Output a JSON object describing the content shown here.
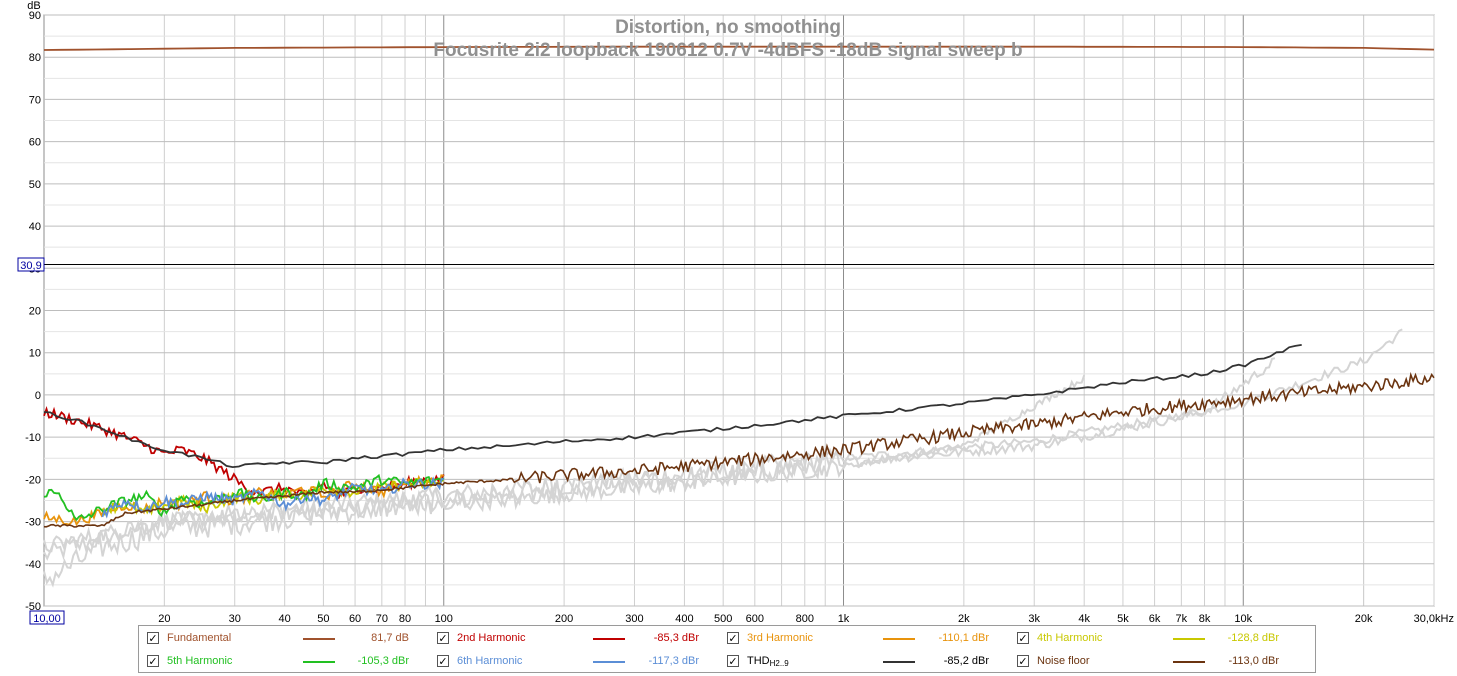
{
  "chart_data": {
    "type": "line",
    "title": "Distortion, no smoothing",
    "subtitle": "Focusrite 2i2 loopback 190612 0.7V -4dBFS -18dB signal sweep b",
    "ylabel": "dB",
    "xunit": "kHz",
    "xscale": "log",
    "xlim": [
      10,
      30000
    ],
    "ylim": [
      -50,
      90
    ],
    "grid": true,
    "cursor_value": "30,9",
    "cursor_y": 30.9,
    "x_start_label": "10,00",
    "y_ticks": [
      "90",
      "80",
      "70",
      "60",
      "50",
      "40",
      "30",
      "20",
      "10",
      "0",
      "-10",
      "-20",
      "-30",
      "-40",
      "-50"
    ],
    "y_tick_values": [
      90,
      80,
      70,
      60,
      50,
      40,
      30,
      20,
      10,
      0,
      -10,
      -20,
      -30,
      -40,
      -50
    ],
    "x_ticks": [
      {
        "v": 20,
        "label": "20"
      },
      {
        "v": 30,
        "label": "30"
      },
      {
        "v": 40,
        "label": "40"
      },
      {
        "v": 50,
        "label": "50"
      },
      {
        "v": 60,
        "label": "60"
      },
      {
        "v": 70,
        "label": "70"
      },
      {
        "v": 80,
        "label": "80"
      },
      {
        "v": 100,
        "label": "100"
      },
      {
        "v": 200,
        "label": "200"
      },
      {
        "v": 300,
        "label": "300"
      },
      {
        "v": 400,
        "label": "400"
      },
      {
        "v": 500,
        "label": "500"
      },
      {
        "v": 600,
        "label": "600"
      },
      {
        "v": 800,
        "label": "800"
      },
      {
        "v": 1000,
        "label": "1k"
      },
      {
        "v": 2000,
        "label": "2k"
      },
      {
        "v": 3000,
        "label": "3k"
      },
      {
        "v": 4000,
        "label": "4k"
      },
      {
        "v": 5000,
        "label": "5k"
      },
      {
        "v": 6000,
        "label": "6k"
      },
      {
        "v": 7000,
        "label": "7k"
      },
      {
        "v": 8000,
        "label": "8k"
      },
      {
        "v": 10000,
        "label": "10k"
      },
      {
        "v": 20000,
        "label": "20k"
      },
      {
        "v": 30000,
        "label": "30,0kHz"
      }
    ],
    "series": [
      {
        "name": "Fundamental",
        "color": "#a0522d",
        "x": [
          10,
          30,
          100,
          300,
          1000,
          3000,
          10000,
          20000,
          30000
        ],
        "y": [
          81.7,
          82.2,
          82.4,
          82.5,
          82.5,
          82.5,
          82.4,
          82.2,
          81.8
        ]
      },
      {
        "name": "2nd Harmonic",
        "color": "#c00000",
        "x": [
          10,
          12,
          14,
          16,
          18,
          20,
          22,
          25,
          28,
          30,
          32,
          35,
          40,
          45,
          50,
          55,
          60,
          70,
          80,
          90,
          100
        ],
        "y": [
          -4,
          -6,
          -8,
          -10,
          -12,
          -14,
          -13,
          -15,
          -18,
          -20,
          -22,
          -23,
          -22,
          -24,
          -21,
          -24,
          -22,
          -22,
          -21,
          -20,
          -20
        ]
      },
      {
        "name": "3rd Harmonic",
        "color": "#e8930c",
        "x": [
          10,
          12,
          14,
          16,
          18,
          20,
          22,
          25,
          30,
          35,
          40,
          45,
          50,
          60,
          70,
          80,
          100
        ],
        "y": [
          -29,
          -30,
          -28,
          -26,
          -27,
          -25,
          -26,
          -24,
          -25,
          -23,
          -24,
          -22,
          -24,
          -21,
          -23,
          -21,
          -20
        ]
      },
      {
        "name": "4th Harmonic",
        "color": "#c8c800",
        "x": [
          14,
          16,
          18,
          20,
          22,
          25,
          30,
          35,
          40,
          45,
          50,
          60,
          70,
          80,
          100
        ],
        "y": [
          -27,
          -26,
          -28,
          -26,
          -25,
          -27,
          -24,
          -25,
          -23,
          -24,
          -22,
          -23,
          -22,
          -21,
          -21
        ]
      },
      {
        "name": "5th Harmonic",
        "color": "#22c022",
        "x": [
          10,
          11,
          12,
          14,
          16,
          18,
          20,
          22,
          25,
          30,
          35,
          40,
          45,
          50,
          60,
          70,
          80,
          100
        ],
        "y": [
          -23,
          -23.5,
          -30,
          -27,
          -25,
          -24,
          -28,
          -24,
          -26,
          -23,
          -25,
          -23,
          -24,
          -21,
          -22,
          -20,
          -21,
          -20
        ]
      },
      {
        "name": "6th Harmonic",
        "color": "#5b8ed6",
        "x": [
          14,
          16,
          18,
          20,
          22,
          25,
          30,
          35,
          40,
          45,
          50,
          60,
          70,
          80,
          100
        ],
        "y": [
          -28,
          -25,
          -27,
          -25,
          -26,
          -24,
          -25,
          -23,
          -26,
          -24,
          -25,
          -22,
          -23,
          -21,
          -21
        ]
      },
      {
        "name": "THD",
        "color": "#333333",
        "x": [
          10,
          12,
          14,
          16,
          18,
          20,
          25,
          30,
          40,
          50,
          60,
          80,
          100,
          150,
          200,
          300,
          500,
          1000,
          2000,
          3000,
          5000,
          8000,
          10000,
          14000
        ],
        "y": [
          -4,
          -6,
          -8,
          -10,
          -12,
          -13,
          -15,
          -17,
          -16,
          -16,
          -15,
          -14,
          -13,
          -12,
          -11,
          -10,
          -8,
          -5,
          -2,
          0,
          3,
          5,
          7,
          12
        ]
      },
      {
        "name": "Noise floor",
        "color": "#6b3410",
        "x": [
          10,
          14,
          16,
          20,
          25,
          30,
          40,
          50,
          60,
          80,
          100,
          150,
          200,
          300,
          500,
          1000,
          2000,
          3000,
          5000,
          10000,
          20000,
          30000
        ],
        "y": [
          -31,
          -31,
          -28,
          -27,
          -26,
          -25,
          -24,
          -23,
          -23,
          -22,
          -21,
          -20,
          -19,
          -18,
          -16,
          -13,
          -9,
          -7,
          -4,
          -1,
          2,
          4
        ]
      }
    ]
  },
  "legend": [
    {
      "label": "Fundamental",
      "value": "81,7 dB",
      "color": "#a0522d",
      "checked": "✓"
    },
    {
      "label": "2nd Harmonic",
      "value": "-85,3 dBr",
      "color": "#c00000",
      "checked": "✓"
    },
    {
      "label": "3rd Harmonic",
      "value": "-110,1 dBr",
      "color": "#e8930c",
      "checked": "✓"
    },
    {
      "label": "4th Harmonic",
      "value": "-128,8 dBr",
      "color": "#c8c800",
      "checked": "✓"
    },
    {
      "label": "5th Harmonic",
      "value": "-105,3 dBr",
      "color": "#22c022",
      "checked": "✓"
    },
    {
      "label": "6th Harmonic",
      "value": "-117,3 dBr",
      "color": "#5b8ed6",
      "checked": "✓"
    },
    {
      "label": "THD",
      "label_sub": "H2..9",
      "value": "-85,2 dBr",
      "color": "#333333",
      "checked": "✓"
    },
    {
      "label": "Noise floor",
      "value": "-113,0 dBr",
      "color": "#6b3410",
      "checked": "✓"
    }
  ]
}
